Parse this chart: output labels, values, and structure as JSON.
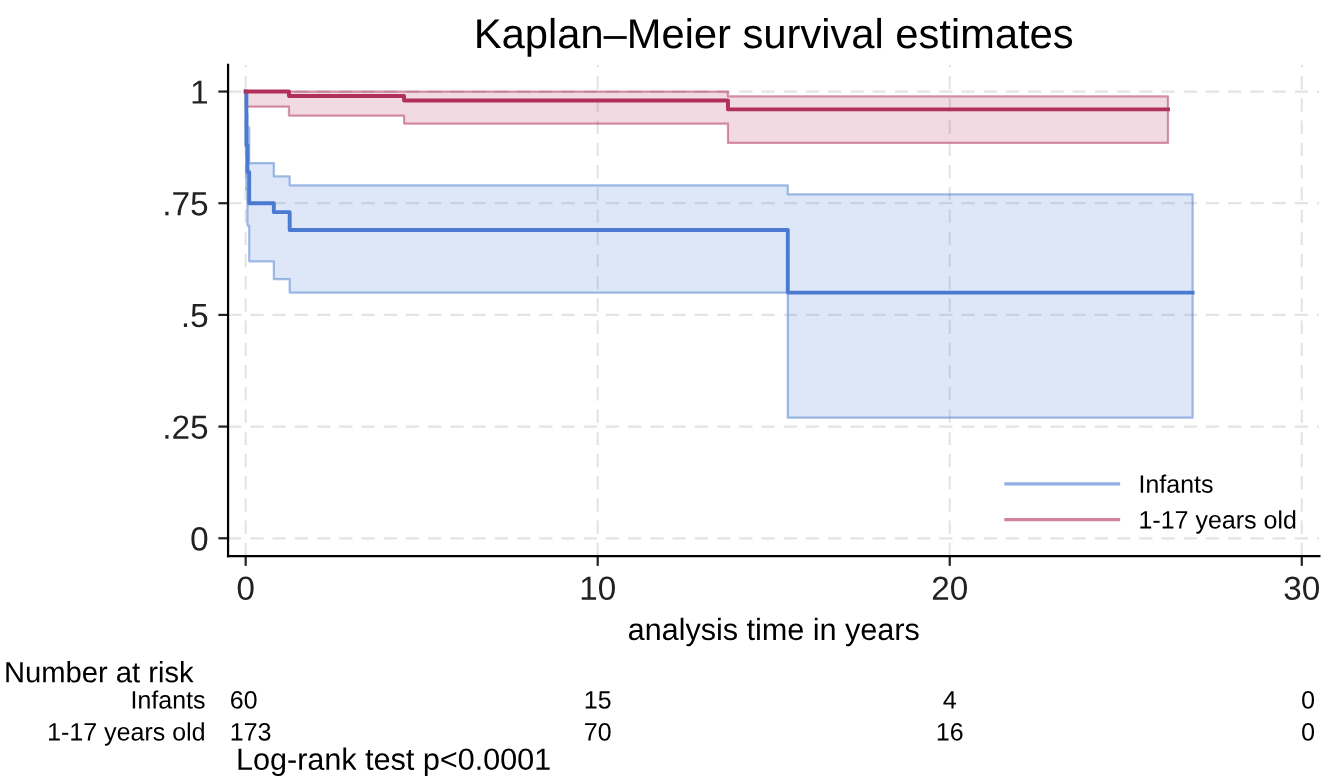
{
  "chart_data": {
    "type": "step",
    "title": "Kaplan–Meier survival estimates",
    "xlabel": "analysis time in years",
    "xlim": [
      -0.5,
      30.5
    ],
    "xticks": [
      0,
      10,
      20,
      30
    ],
    "ylim": [
      -0.04,
      1.06
    ],
    "yticks": [
      0,
      {
        "value": 0.25,
        "label": ".25"
      },
      {
        "value": 0.5,
        "label": ".5"
      },
      {
        "value": 0.75,
        "label": ".75"
      },
      1
    ],
    "grid": true,
    "line_style": "solid",
    "legend": "bottom right",
    "series": [
      {
        "name": "Infants",
        "color": "#4a7bd0",
        "x": [
          0,
          0.02,
          0.05,
          0.1,
          0.8,
          1.25,
          15.4,
          26.9
        ],
        "values": [
          1.0,
          0.88,
          0.82,
          0.75,
          0.73,
          0.69,
          0.55,
          0.55
        ],
        "lower": [
          1.0,
          0.78,
          0.7,
          0.62,
          0.58,
          0.55,
          0.27,
          0.27
        ],
        "upper": [
          1.0,
          0.95,
          0.92,
          0.84,
          0.81,
          0.79,
          0.77,
          0.77
        ]
      },
      {
        "name": "1-17 years old",
        "color": "#b0305a",
        "x": [
          0,
          1.23,
          4.5,
          13.7,
          26.2
        ],
        "values": [
          1.0,
          0.99,
          0.98,
          0.96,
          0.96
        ],
        "lower": [
          0.966,
          0.946,
          0.928,
          0.885,
          0.885
        ],
        "upper": [
          1.0,
          1.0,
          1.0,
          0.989,
          0.989
        ]
      }
    ],
    "annotations": [
      "Number at risk",
      "Infants",
      "60",
      "15",
      "4",
      "0",
      "1-17 years old",
      "173",
      "70",
      "16",
      "0",
      "Log-rank test p<0.0001"
    ]
  }
}
